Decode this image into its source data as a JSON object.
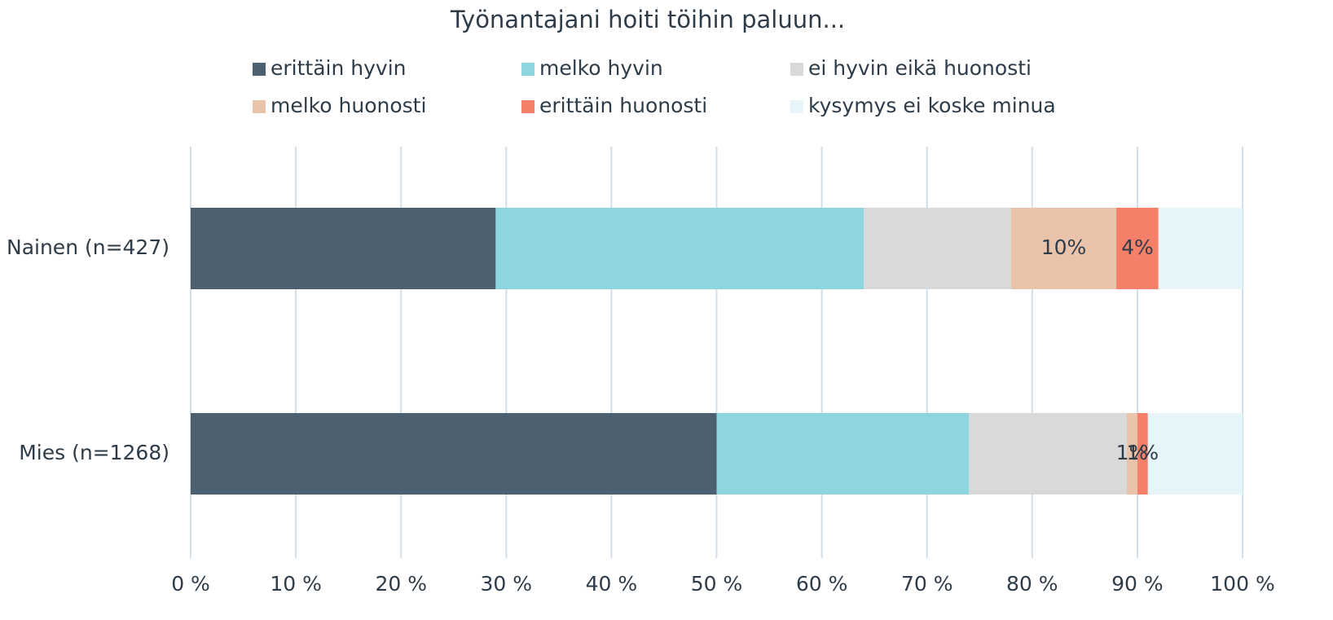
{
  "chart_data": {
    "type": "stacked-bar-horizontal",
    "title": "Työnantajani hoiti töihin paluun...",
    "categories": [
      "Nainen (n=427)",
      "Mies (n=1268)"
    ],
    "series": [
      {
        "name": "erittäin hyvin",
        "color": "#4d6070",
        "values": [
          29,
          50
        ]
      },
      {
        "name": "melko hyvin",
        "color": "#8dd6e0",
        "values": [
          35,
          24
        ]
      },
      {
        "name": "ei hyvin eikä huonosti",
        "color": "#d9d9d9",
        "values": [
          14,
          15
        ]
      },
      {
        "name": "melko huonosti",
        "color": "#e9c4aa",
        "values": [
          10,
          1
        ],
        "value_labels": [
          "10%",
          "1%"
        ]
      },
      {
        "name": "erittäin huonosti",
        "color": "#f5806a",
        "values": [
          4,
          1
        ],
        "value_labels": [
          "4%",
          "1%"
        ]
      },
      {
        "name": "kysymys ei koske minua",
        "color": "#e6f5f9",
        "values": [
          8,
          9
        ]
      }
    ],
    "xlim": [
      0,
      100
    ],
    "xticks": [
      {
        "value": 0,
        "label": "0 %"
      },
      {
        "value": 10,
        "label": "10 %"
      },
      {
        "value": 20,
        "label": "20 %"
      },
      {
        "value": 30,
        "label": "30 %"
      },
      {
        "value": 40,
        "label": "40 %"
      },
      {
        "value": 50,
        "label": "50 %"
      },
      {
        "value": 60,
        "label": "60 %"
      },
      {
        "value": 70,
        "label": "70 %"
      },
      {
        "value": 80,
        "label": "80 %"
      },
      {
        "value": 90,
        "label": "90 %"
      },
      {
        "value": 100,
        "label": "100 %"
      }
    ],
    "grid": true,
    "legend": "top"
  }
}
